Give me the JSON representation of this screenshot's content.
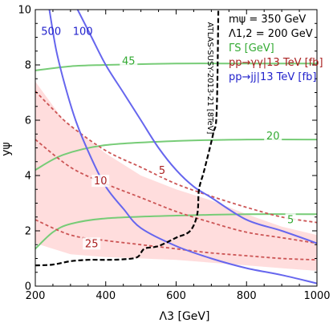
{
  "chart_data": {
    "type": "line",
    "xlabel": "Λ3 [GeV]",
    "ylabel": "yψ",
    "xlim": [
      200,
      1000
    ],
    "ylim": [
      0,
      10
    ],
    "x_ticks": [
      "200",
      "400",
      "600",
      "800",
      "1000"
    ],
    "y_ticks": [
      "0",
      "2",
      "4",
      "6",
      "8",
      "10"
    ],
    "legend": [
      {
        "text": "mψ = 350 GeV",
        "color": "#000000"
      },
      {
        "text": "Λ1,2 = 200 GeV",
        "color": "#000000"
      },
      {
        "text": "ΓS [GeV]",
        "color": "#33aa33"
      },
      {
        "text": "pp→γγ|13 TeV [fb]",
        "color": "#aa2222"
      },
      {
        "text": "pp→jj|13 TeV [fb]",
        "color": "#2222cc"
      }
    ],
    "band": {
      "color": "#ffdddd",
      "lower": [
        [
          200,
          1.55
        ],
        [
          300,
          1.15
        ],
        [
          400,
          1.05
        ],
        [
          500,
          1.0
        ],
        [
          600,
          0.95
        ],
        [
          700,
          0.85
        ],
        [
          800,
          0.75
        ],
        [
          900,
          0.65
        ],
        [
          1000,
          0.55
        ]
      ],
      "upper": [
        [
          200,
          7.4
        ],
        [
          280,
          6.0
        ],
        [
          400,
          4.8
        ],
        [
          500,
          4.0
        ],
        [
          600,
          3.5
        ],
        [
          700,
          3.1
        ],
        [
          800,
          2.6
        ],
        [
          900,
          2.15
        ],
        [
          1000,
          1.85
        ]
      ]
    },
    "series": [
      {
        "group": "gamma_s",
        "label": "45",
        "color": "#77cc77",
        "points": [
          [
            200,
            7.8
          ],
          [
            300,
            7.95
          ],
          [
            400,
            8.0
          ],
          [
            600,
            8.05
          ],
          [
            800,
            8.05
          ],
          [
            1000,
            8.05
          ]
        ]
      },
      {
        "group": "gamma_s",
        "label": "20",
        "color": "#77cc77",
        "points": [
          [
            200,
            4.2
          ],
          [
            280,
            4.75
          ],
          [
            400,
            5.1
          ],
          [
            600,
            5.25
          ],
          [
            800,
            5.3
          ],
          [
            1000,
            5.3
          ]
        ]
      },
      {
        "group": "gamma_s",
        "label": "5",
        "color": "#77cc77",
        "points": [
          [
            200,
            1.35
          ],
          [
            250,
            1.95
          ],
          [
            300,
            2.25
          ],
          [
            400,
            2.45
          ],
          [
            600,
            2.55
          ],
          [
            800,
            2.6
          ],
          [
            1000,
            2.6
          ]
        ]
      },
      {
        "group": "diphoton",
        "label": "5",
        "color": "#cc5555",
        "points": [
          [
            200,
            7.05
          ],
          [
            250,
            6.4
          ],
          [
            300,
            5.8
          ],
          [
            400,
            4.9
          ],
          [
            500,
            4.3
          ],
          [
            600,
            3.7
          ],
          [
            700,
            3.25
          ],
          [
            800,
            2.85
          ],
          [
            900,
            2.5
          ],
          [
            1000,
            2.3
          ]
        ]
      },
      {
        "group": "diphoton",
        "label": "10",
        "color": "#cc5555",
        "points": [
          [
            200,
            5.3
          ],
          [
            300,
            4.3
          ],
          [
            400,
            3.7
          ],
          [
            500,
            3.2
          ],
          [
            600,
            2.7
          ],
          [
            700,
            2.3
          ],
          [
            800,
            1.95
          ],
          [
            900,
            1.75
          ],
          [
            1000,
            1.55
          ]
        ]
      },
      {
        "group": "diphoton",
        "label": "25",
        "color": "#cc5555",
        "points": [
          [
            200,
            2.4
          ],
          [
            300,
            1.85
          ],
          [
            400,
            1.65
          ],
          [
            500,
            1.5
          ],
          [
            600,
            1.35
          ],
          [
            700,
            1.2
          ],
          [
            800,
            1.1
          ],
          [
            900,
            1.0
          ],
          [
            1000,
            0.95
          ]
        ]
      },
      {
        "group": "dijet",
        "label": "500",
        "color": "#6666ee",
        "points": [
          [
            240,
            10.0
          ],
          [
            260,
            8.5
          ],
          [
            290,
            7.0
          ],
          [
            320,
            5.8
          ],
          [
            360,
            4.6
          ],
          [
            400,
            3.6
          ],
          [
            450,
            2.8
          ],
          [
            500,
            2.1
          ],
          [
            600,
            1.45
          ],
          [
            700,
            1.0
          ],
          [
            800,
            0.65
          ],
          [
            900,
            0.4
          ],
          [
            1000,
            0.1
          ]
        ]
      },
      {
        "group": "dijet",
        "label": "100",
        "color": "#6666ee",
        "points": [
          [
            320,
            10.0
          ],
          [
            360,
            9.0
          ],
          [
            400,
            8.0
          ],
          [
            450,
            7.0
          ],
          [
            500,
            6.0
          ],
          [
            550,
            5.0
          ],
          [
            600,
            4.2
          ],
          [
            650,
            3.6
          ],
          [
            700,
            3.2
          ],
          [
            800,
            2.4
          ],
          [
            900,
            2.0
          ],
          [
            1000,
            1.55
          ]
        ]
      },
      {
        "group": "atlas",
        "label": "ATLAS-SUSY-2013-21 [8TeV]",
        "color": "#000000",
        "points": [
          [
            200,
            0.75
          ],
          [
            250,
            0.78
          ],
          [
            300,
            0.9
          ],
          [
            350,
            0.95
          ],
          [
            400,
            0.95
          ],
          [
            450,
            0.97
          ],
          [
            490,
            1.05
          ],
          [
            510,
            1.35
          ],
          [
            550,
            1.45
          ],
          [
            600,
            1.75
          ],
          [
            640,
            2.0
          ],
          [
            660,
            2.6
          ],
          [
            665,
            3.5
          ],
          [
            680,
            4.2
          ],
          [
            705,
            5.5
          ],
          [
            715,
            6.3
          ],
          [
            720,
            10.0
          ]
        ]
      }
    ]
  }
}
